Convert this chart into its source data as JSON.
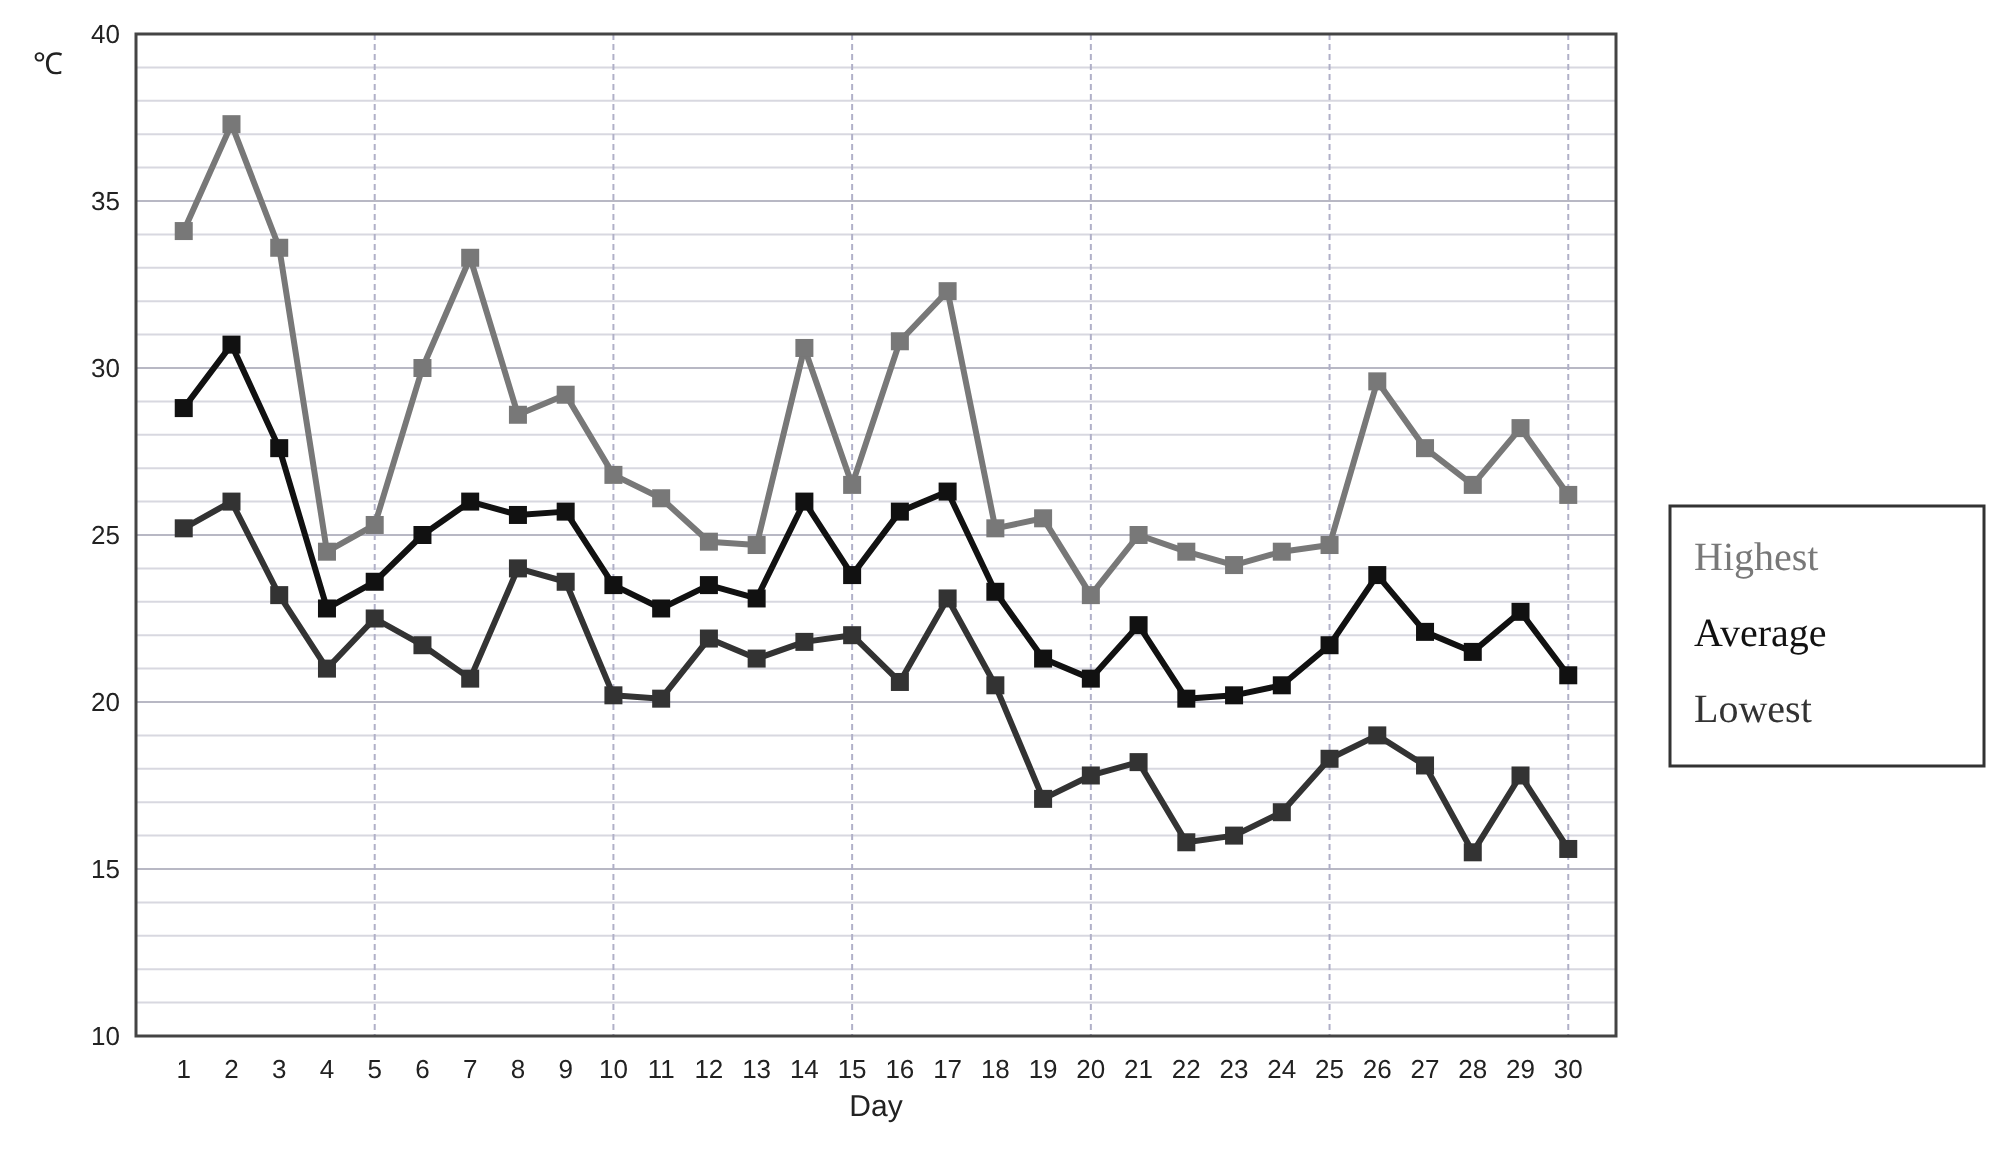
{
  "chart_data": {
    "type": "line",
    "xlabel": "Day",
    "ylabel": "℃",
    "xlim": [
      0,
      31
    ],
    "xticks": [
      1,
      2,
      3,
      4,
      5,
      6,
      7,
      8,
      9,
      10,
      11,
      12,
      13,
      14,
      15,
      16,
      17,
      18,
      19,
      20,
      21,
      22,
      23,
      24,
      25,
      26,
      27,
      28,
      29,
      30
    ],
    "ylim": [
      10,
      40
    ],
    "yticks": [
      10,
      15,
      20,
      25,
      30,
      35,
      40
    ],
    "grid": true,
    "legend": "right",
    "marker": "square",
    "line_style": "solid",
    "x": [
      1,
      2,
      3,
      4,
      5,
      6,
      7,
      8,
      9,
      10,
      11,
      12,
      13,
      14,
      15,
      16,
      17,
      18,
      19,
      20,
      21,
      22,
      23,
      24,
      25,
      26,
      27,
      28,
      29,
      30
    ],
    "series": [
      {
        "name": "Highest",
        "color": "#787878",
        "values": [
          34.1,
          37.3,
          33.6,
          24.5,
          25.3,
          30.0,
          33.3,
          28.6,
          29.2,
          26.8,
          26.1,
          24.8,
          24.7,
          30.6,
          26.5,
          30.8,
          32.3,
          25.2,
          25.5,
          23.2,
          25.0,
          24.5,
          24.1,
          24.5,
          24.7,
          29.6,
          27.6,
          26.5,
          28.2,
          26.2
        ]
      },
      {
        "name": "Average",
        "color": "#111111",
        "values": [
          28.8,
          30.7,
          27.6,
          22.8,
          23.6,
          25.0,
          26.0,
          25.6,
          25.7,
          23.5,
          22.8,
          23.5,
          23.1,
          26.0,
          23.8,
          25.7,
          26.3,
          23.3,
          21.3,
          20.7,
          22.3,
          20.1,
          20.2,
          20.5,
          21.7,
          23.8,
          22.1,
          21.5,
          22.7,
          20.8
        ]
      },
      {
        "name": "Lowest",
        "color": "#333333",
        "values": [
          25.2,
          26.0,
          23.2,
          21.0,
          22.5,
          21.7,
          20.7,
          24.0,
          23.6,
          20.2,
          20.1,
          21.9,
          21.3,
          21.8,
          22.0,
          20.6,
          23.1,
          20.5,
          17.1,
          17.8,
          18.2,
          15.8,
          16.0,
          16.7,
          18.3,
          19.0,
          18.1,
          15.5,
          17.8,
          15.6
        ]
      }
    ]
  }
}
